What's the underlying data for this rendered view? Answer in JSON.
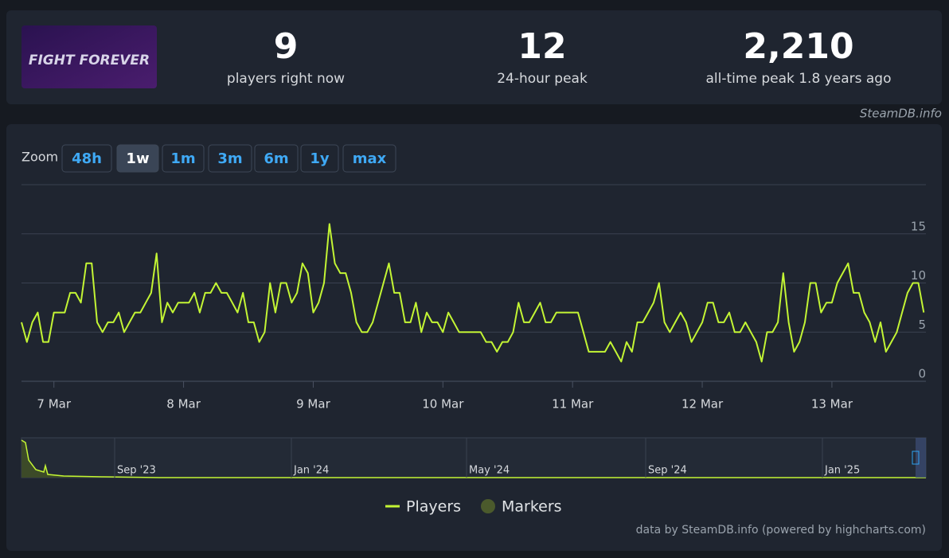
{
  "header": {
    "logo_text": "FIGHT FOREVER",
    "stats": [
      {
        "value": "9",
        "label": "players right now"
      },
      {
        "value": "12",
        "label": "24-hour peak"
      },
      {
        "value": "2,210",
        "label": "all-time peak 1.8 years ago"
      }
    ]
  },
  "source": "SteamDB.info",
  "zoom": {
    "label": "Zoom",
    "buttons": [
      "48h",
      "1w",
      "1m",
      "3m",
      "6m",
      "1y",
      "max"
    ],
    "active": "1w"
  },
  "chart_data": {
    "type": "line",
    "x": [
      -6,
      -5,
      -4,
      -3,
      -2,
      -1,
      0,
      1,
      2,
      3,
      4,
      5,
      6,
      7,
      8,
      9,
      10,
      11,
      12,
      13,
      14,
      15,
      16,
      17,
      18,
      19,
      20,
      21,
      22,
      23,
      24,
      25,
      26,
      27,
      28,
      29,
      30,
      31,
      32,
      33,
      34,
      35,
      36,
      37,
      38,
      39,
      40,
      41,
      42,
      43,
      44,
      45,
      46,
      47,
      48,
      49,
      50,
      51,
      52,
      53,
      54,
      55,
      56,
      57,
      58,
      59,
      60,
      61,
      62,
      63,
      64,
      65,
      66,
      67,
      68,
      69,
      70,
      71,
      72,
      73,
      74,
      75,
      76,
      77,
      78,
      79,
      80,
      81,
      82,
      83,
      84,
      85,
      86,
      87,
      88,
      89,
      90,
      91,
      92,
      93,
      94,
      95,
      96,
      97,
      98,
      99,
      100,
      101,
      102,
      103,
      104,
      105,
      106,
      107,
      108,
      109,
      110,
      111,
      112,
      113,
      114,
      115,
      116,
      117,
      118,
      119,
      120,
      121,
      122,
      123,
      124,
      125,
      126,
      127,
      128,
      129,
      130,
      131,
      132,
      133,
      134,
      135,
      136,
      137,
      138,
      139,
      140,
      141,
      142,
      143,
      144,
      145,
      146,
      147,
      148,
      149,
      150,
      151,
      152,
      153,
      154,
      155,
      156,
      157,
      158,
      159,
      160,
      161
    ],
    "series": [
      {
        "name": "Players",
        "color": "#c3f534",
        "values": [
          6,
          4,
          6,
          7,
          4,
          4,
          7,
          7,
          7,
          9,
          9,
          8,
          12,
          12,
          6,
          5,
          6,
          6,
          7,
          5,
          6,
          7,
          7,
          8,
          9,
          13,
          6,
          8,
          7,
          8,
          8,
          8,
          9,
          7,
          9,
          9,
          10,
          9,
          9,
          8,
          7,
          9,
          6,
          6,
          4,
          5,
          10,
          7,
          10,
          10,
          8,
          9,
          12,
          11,
          7,
          8,
          10,
          16,
          12,
          11,
          11,
          9,
          6,
          5,
          5,
          6,
          8,
          10,
          12,
          9,
          9,
          6,
          6,
          8,
          5,
          7,
          6,
          6,
          5,
          7,
          6,
          5,
          5,
          5,
          5,
          5,
          4,
          4,
          3,
          4,
          4,
          5,
          8,
          6,
          6,
          7,
          8,
          6,
          6,
          7,
          7,
          7,
          7,
          7,
          5,
          3,
          3,
          3,
          3,
          4,
          3,
          2,
          4,
          3,
          6,
          6,
          7,
          8,
          10,
          6,
          5,
          6,
          7,
          6,
          4,
          5,
          6,
          8,
          8,
          6,
          6,
          7,
          5,
          5,
          6,
          5,
          4,
          2,
          5,
          5,
          6,
          11,
          6,
          3,
          4,
          6,
          10,
          10,
          7,
          8,
          8,
          10,
          11,
          12,
          9,
          9,
          7,
          6,
          4,
          6,
          3,
          4,
          5,
          7,
          9,
          10,
          10,
          7
        ]
      }
    ],
    "xlim": [
      -6,
      161.4
    ],
    "xticks": [
      {
        "value": 0,
        "label": "7 Mar"
      },
      {
        "value": 24,
        "label": "8 Mar"
      },
      {
        "value": 48,
        "label": "9 Mar"
      },
      {
        "value": 72,
        "label": "10 Mar"
      },
      {
        "value": 96,
        "label": "11 Mar"
      },
      {
        "value": 120,
        "label": "12 Mar"
      },
      {
        "value": 144,
        "label": "13 Mar"
      }
    ],
    "ylim": [
      0,
      20
    ],
    "yticks": [
      0,
      5,
      10,
      15
    ],
    "grid": true,
    "markers_label": "Markers",
    "markers_color": "#4b5a2c"
  },
  "navigator": {
    "labels": [
      "Sep '23",
      "Jan '24",
      "May '24",
      "Sep '24",
      "Jan '25"
    ]
  },
  "credit": "data by SteamDB.info (powered by highcharts.com)"
}
